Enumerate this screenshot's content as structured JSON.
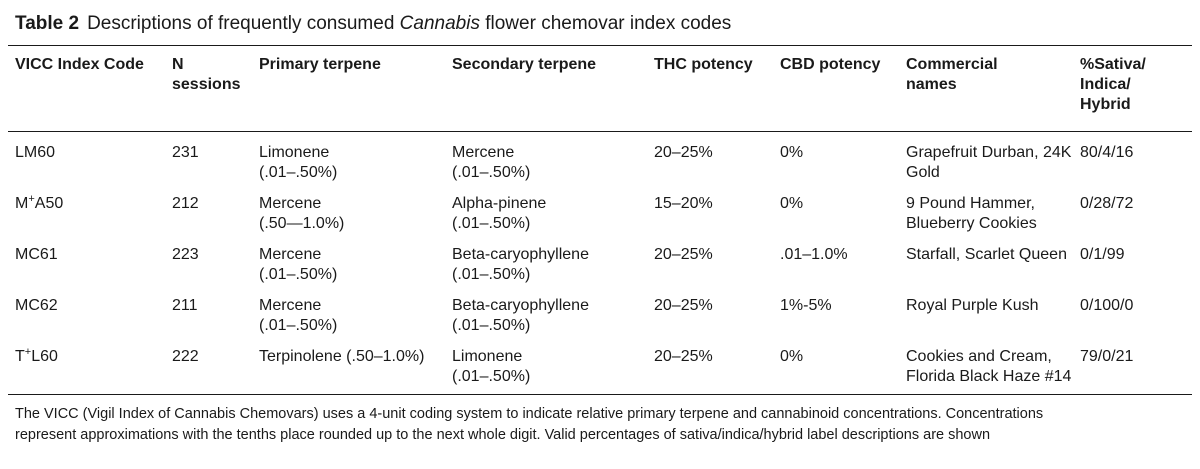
{
  "caption": {
    "label": "Table 2",
    "text_before": "Descriptions of frequently consumed ",
    "text_italic": "Cannabis",
    "text_after": " flower chemovar index codes"
  },
  "table": {
    "headers": [
      [
        "VICC Index Code"
      ],
      [
        "N",
        "sessions"
      ],
      [
        "Primary terpene"
      ],
      [
        "Secondary terpene"
      ],
      [
        "THC potency"
      ],
      [
        "CBD potency"
      ],
      [
        "Commercial",
        "names"
      ],
      [
        "%Sativa/",
        "Indica/",
        "Hybrid"
      ]
    ],
    "rows": [
      {
        "code_prefix": "LM60",
        "code_sup": "",
        "code_suffix": "",
        "sessions": "231",
        "primary": [
          "Limonene",
          "(.01–.50%)"
        ],
        "secondary": [
          "Mercene",
          "(.01–.50%)"
        ],
        "thc": "20–25%",
        "cbd": "0%",
        "names": [
          "Grapefruit Durban, 24K",
          "Gold"
        ],
        "ratio": "80/4/16"
      },
      {
        "code_prefix": "M",
        "code_sup": "+",
        "code_suffix": "A50",
        "sessions": "212",
        "primary": [
          "Mercene",
          "(.50—1.0%)"
        ],
        "secondary": [
          "Alpha-pinene",
          "(.01–.50%)"
        ],
        "thc": "15–20%",
        "cbd": "0%",
        "names": [
          "9 Pound Hammer,",
          "Blueberry Cookies"
        ],
        "ratio": "0/28/72"
      },
      {
        "code_prefix": "MC61",
        "code_sup": "",
        "code_suffix": "",
        "sessions": "223",
        "primary": [
          "Mercene",
          "(.01–.50%)"
        ],
        "secondary": [
          "Beta-caryophyllene",
          "(.01–.50%)"
        ],
        "thc": "20–25%",
        "cbd": ".01–1.0%",
        "names": [
          "Starfall, Scarlet Queen",
          ""
        ],
        "ratio": "0/1/99"
      },
      {
        "code_prefix": "MC62",
        "code_sup": "",
        "code_suffix": "",
        "sessions": "211",
        "primary": [
          "Mercene",
          "(.01–.50%)"
        ],
        "secondary": [
          "Beta-caryophyllene",
          "(.01–.50%)"
        ],
        "thc": "20–25%",
        "cbd": "1%-5%",
        "names": [
          "Royal Purple Kush",
          ""
        ],
        "ratio": "0/100/0"
      },
      {
        "code_prefix": "T",
        "code_sup": "+",
        "code_suffix": "L60",
        "sessions": "222",
        "primary": [
          "Terpinolene (.50–1.0%)",
          ""
        ],
        "secondary": [
          "Limonene",
          "(.01–.50%)"
        ],
        "thc": "20–25%",
        "cbd": "0%",
        "names": [
          "Cookies and Cream,",
          "Florida Black Haze #14"
        ],
        "ratio": "79/0/21"
      }
    ]
  },
  "footnote": {
    "lines": [
      "The VICC (Vigil Index of Cannabis Chemovars) uses a 4-unit coding system to indicate relative primary terpene and cannabinoid concentrations. Concentrations",
      "represent approximations with the tenths place rounded up to the next whole digit. Valid percentages of sativa/indica/hybrid label descriptions are shown"
    ]
  }
}
